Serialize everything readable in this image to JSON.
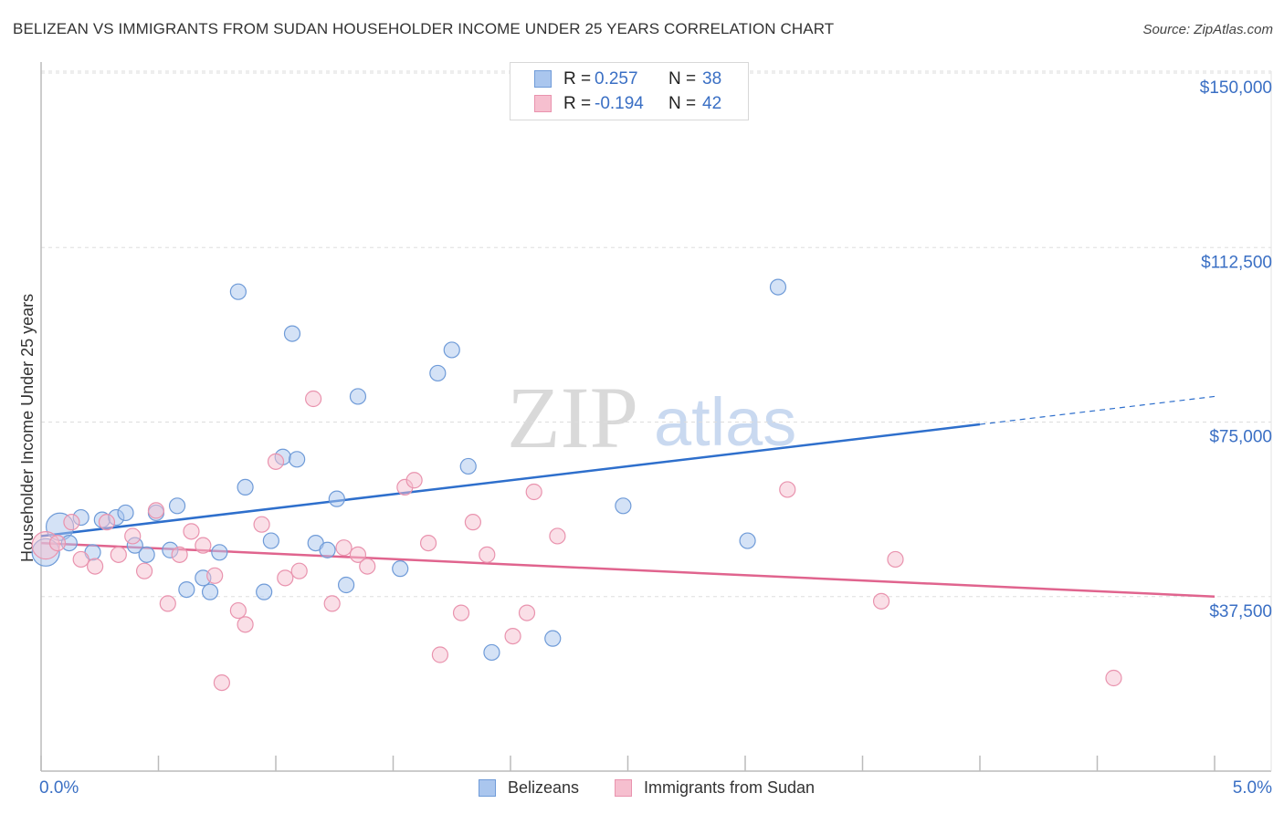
{
  "title": "BELIZEAN VS IMMIGRANTS FROM SUDAN HOUSEHOLDER INCOME UNDER 25 YEARS CORRELATION CHART",
  "source": "Source: ZipAtlas.com",
  "watermark": {
    "zip": "ZIP",
    "atlas": "atlas"
  },
  "colors": {
    "blue_fill": "#aac6ee",
    "blue_stroke": "#6f9bd8",
    "blue_line": "#2e6fcc",
    "pink_fill": "#f6bfcf",
    "pink_stroke": "#e993ae",
    "pink_line": "#e0648e",
    "axis_text": "#3a6fc4",
    "grid": "#dddddd"
  },
  "legend": {
    "r_label": "R =",
    "n_label": "N =",
    "series": [
      {
        "r": "0.257",
        "n": "38"
      },
      {
        "r": "-0.194",
        "n": "42"
      }
    ]
  },
  "chart_data": {
    "type": "scatter",
    "title": "BELIZEAN VS IMMIGRANTS FROM SUDAN HOUSEHOLDER INCOME UNDER 25 YEARS CORRELATION CHART",
    "xlabel": "",
    "ylabel": "Householder Income Under 25 years",
    "xlim": [
      0,
      5
    ],
    "ylim": [
      0,
      155000
    ],
    "x_tick_labels": [
      "0.0%",
      "5.0%"
    ],
    "y_ticks": [
      37500,
      75000,
      112500,
      150000
    ],
    "y_tick_labels": [
      "$37,500",
      "$75,000",
      "$112,500",
      "$150,000"
    ],
    "series": [
      {
        "name": "Belizeans",
        "color": "#aac6ee",
        "trend": {
          "x0": 0,
          "y0": 50500,
          "x1": 4.0,
          "y1": 74500,
          "x_dash_end": 5.0,
          "y_dash_end": 80500
        },
        "points": [
          {
            "x": 0.02,
            "y": 47000,
            "big": 1
          },
          {
            "x": 0.08,
            "y": 52500,
            "big": 1
          },
          {
            "x": 0.12,
            "y": 49000
          },
          {
            "x": 0.17,
            "y": 54500
          },
          {
            "x": 0.22,
            "y": 47000
          },
          {
            "x": 0.26,
            "y": 54000
          },
          {
            "x": 0.32,
            "y": 54500
          },
          {
            "x": 0.36,
            "y": 55500
          },
          {
            "x": 0.4,
            "y": 48500
          },
          {
            "x": 0.45,
            "y": 46500
          },
          {
            "x": 0.49,
            "y": 55500
          },
          {
            "x": 0.55,
            "y": 47500
          },
          {
            "x": 0.58,
            "y": 57000
          },
          {
            "x": 0.62,
            "y": 39000
          },
          {
            "x": 0.69,
            "y": 41500
          },
          {
            "x": 0.72,
            "y": 38500
          },
          {
            "x": 0.76,
            "y": 47000
          },
          {
            "x": 0.84,
            "y": 103000
          },
          {
            "x": 0.87,
            "y": 61000
          },
          {
            "x": 0.95,
            "y": 38500
          },
          {
            "x": 0.98,
            "y": 49500
          },
          {
            "x": 1.03,
            "y": 67500
          },
          {
            "x": 1.07,
            "y": 94000
          },
          {
            "x": 1.09,
            "y": 67000
          },
          {
            "x": 1.17,
            "y": 49000
          },
          {
            "x": 1.22,
            "y": 47500
          },
          {
            "x": 1.26,
            "y": 58500
          },
          {
            "x": 1.3,
            "y": 40000
          },
          {
            "x": 1.35,
            "y": 80500
          },
          {
            "x": 1.53,
            "y": 43500
          },
          {
            "x": 1.69,
            "y": 85500
          },
          {
            "x": 1.75,
            "y": 90500
          },
          {
            "x": 1.82,
            "y": 65500
          },
          {
            "x": 1.92,
            "y": 25500
          },
          {
            "x": 2.18,
            "y": 28500
          },
          {
            "x": 2.48,
            "y": 57000
          },
          {
            "x": 3.01,
            "y": 49500
          },
          {
            "x": 3.14,
            "y": 104000
          }
        ]
      },
      {
        "name": "Immigrants from Sudan",
        "color": "#f6bfcf",
        "trend": {
          "x0": 0,
          "y0": 49000,
          "x1": 5.0,
          "y1": 37500
        },
        "points": [
          {
            "x": 0.02,
            "y": 48500,
            "big": 1
          },
          {
            "x": 0.07,
            "y": 49000
          },
          {
            "x": 0.13,
            "y": 53500
          },
          {
            "x": 0.17,
            "y": 45500
          },
          {
            "x": 0.23,
            "y": 44000
          },
          {
            "x": 0.28,
            "y": 53500
          },
          {
            "x": 0.33,
            "y": 46500
          },
          {
            "x": 0.39,
            "y": 50500
          },
          {
            "x": 0.44,
            "y": 43000
          },
          {
            "x": 0.49,
            "y": 56000
          },
          {
            "x": 0.54,
            "y": 36000
          },
          {
            "x": 0.59,
            "y": 46500
          },
          {
            "x": 0.64,
            "y": 51500
          },
          {
            "x": 0.69,
            "y": 48500
          },
          {
            "x": 0.74,
            "y": 42000
          },
          {
            "x": 0.77,
            "y": 19000
          },
          {
            "x": 0.84,
            "y": 34500
          },
          {
            "x": 0.87,
            "y": 31500
          },
          {
            "x": 0.94,
            "y": 53000
          },
          {
            "x": 1.0,
            "y": 66500
          },
          {
            "x": 1.04,
            "y": 41500
          },
          {
            "x": 1.1,
            "y": 43000
          },
          {
            "x": 1.16,
            "y": 80000
          },
          {
            "x": 1.24,
            "y": 36000
          },
          {
            "x": 1.29,
            "y": 48000
          },
          {
            "x": 1.35,
            "y": 46500
          },
          {
            "x": 1.39,
            "y": 44000
          },
          {
            "x": 1.55,
            "y": 61000
          },
          {
            "x": 1.59,
            "y": 62500
          },
          {
            "x": 1.65,
            "y": 49000
          },
          {
            "x": 1.7,
            "y": 25000
          },
          {
            "x": 1.79,
            "y": 34000
          },
          {
            "x": 1.84,
            "y": 53500
          },
          {
            "x": 1.9,
            "y": 46500
          },
          {
            "x": 2.01,
            "y": 29000
          },
          {
            "x": 2.07,
            "y": 34000
          },
          {
            "x": 2.1,
            "y": 60000
          },
          {
            "x": 2.2,
            "y": 50500
          },
          {
            "x": 3.18,
            "y": 60500
          },
          {
            "x": 3.58,
            "y": 36500
          },
          {
            "x": 3.64,
            "y": 45500
          },
          {
            "x": 4.57,
            "y": 20000
          }
        ]
      }
    ]
  },
  "bottom_legend": [
    "Belizeans",
    "Immigrants from Sudan"
  ]
}
